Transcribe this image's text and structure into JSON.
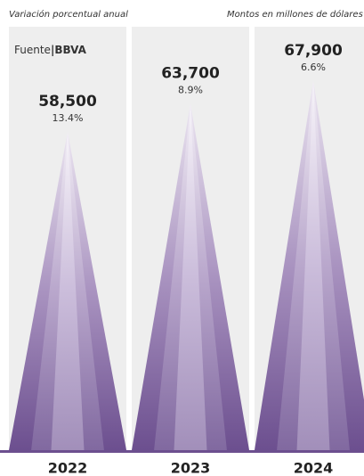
{
  "chart_data": {
    "type": "triangle",
    "subtitle": "Variación porcentual anual",
    "units_note": "Montos en millones de dólares",
    "source_label": "Fuente",
    "source": "BBVA",
    "categories": [
      "2022",
      "2023",
      "2024"
    ],
    "values": [
      58500,
      63700,
      67900
    ],
    "value_labels": [
      "58,500",
      "63,700",
      "67,900"
    ],
    "changes": [
      13.4,
      8.9,
      6.6
    ],
    "change_labels": [
      "13.4%",
      "8.9%",
      "6.6%"
    ],
    "color": "#6c4f8f"
  }
}
